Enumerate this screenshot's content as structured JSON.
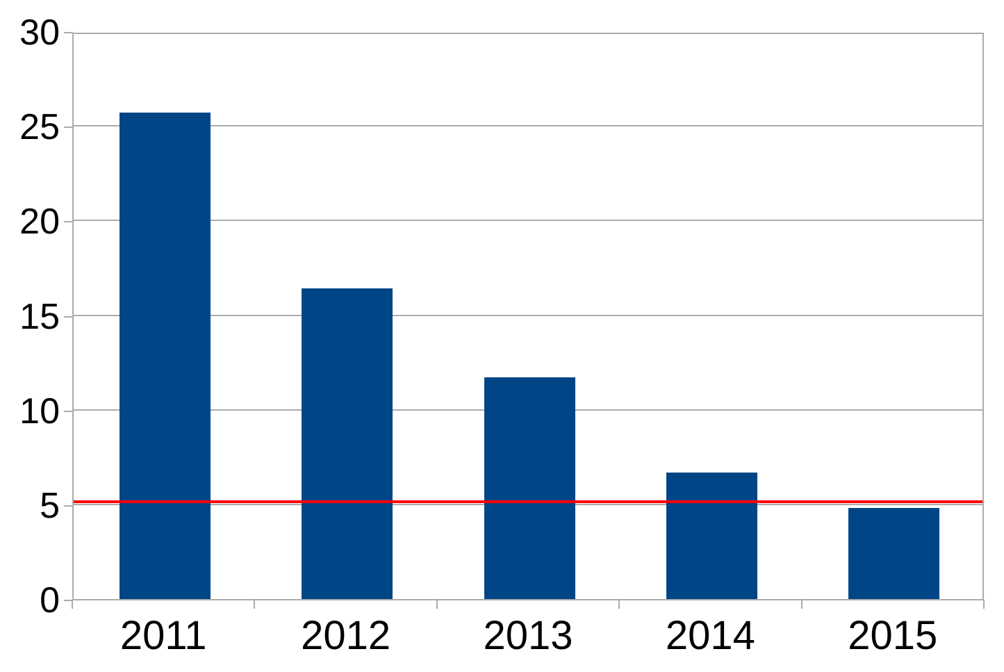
{
  "chart_data": {
    "type": "bar",
    "categories": [
      "2011",
      "2012",
      "2013",
      "2014",
      "2015"
    ],
    "values": [
      25.7,
      16.4,
      11.7,
      6.7,
      4.8
    ],
    "title": "",
    "xlabel": "",
    "ylabel": "",
    "ylim": [
      0,
      30
    ],
    "yticks": [
      0,
      5,
      10,
      15,
      20,
      25,
      30
    ],
    "grid": "horizontal",
    "legend_position": "none",
    "reference_line": {
      "value": 5.15,
      "color": "#ff0000"
    },
    "colors": {
      "bar": "#004586",
      "reference_line": "#ff0000",
      "gridline": "#ababab",
      "axis": "#ababab",
      "tick_label": "#000000",
      "background": "#ffffff"
    }
  }
}
